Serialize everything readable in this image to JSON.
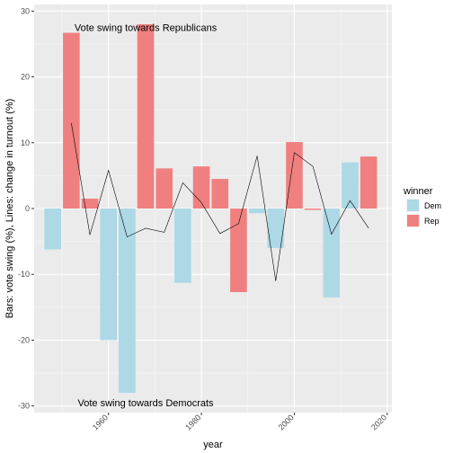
{
  "chart_data": {
    "type": "bar",
    "title": "",
    "xlabel": "year",
    "ylabel": "Bars: vote swing (%), Lines: change in turnout (%)",
    "xlim": [
      1944,
      2021
    ],
    "ylim": [
      -31,
      31
    ],
    "x_ticks": [
      1960,
      1980,
      2000,
      2020
    ],
    "x_tick_labels": [
      "1960",
      "1980",
      "2000",
      "2020"
    ],
    "y_ticks": [
      -30,
      -20,
      -10,
      0,
      10,
      20,
      30
    ],
    "y_tick_labels": [
      "-30",
      "-20",
      "-10",
      "0",
      "10",
      "20",
      "30"
    ],
    "grid": true,
    "legend_placement": "right",
    "legend": {
      "title": "winner",
      "entries": [
        {
          "label": "Dem",
          "color": "#ADD8E6"
        },
        {
          "label": "Rep",
          "color": "#F08080"
        }
      ]
    },
    "annotations": [
      {
        "text": "Vote swing towards Republicans",
        "x": 1968,
        "y": 27.5
      },
      {
        "text": "Vote swing towards Democrats",
        "x": 1968,
        "y": -29.5
      }
    ],
    "bars": [
      {
        "year": 1948,
        "value": -6.2,
        "winner": "Dem"
      },
      {
        "year": 1952,
        "value": 26.7,
        "winner": "Rep"
      },
      {
        "year": 1956,
        "value": 1.5,
        "winner": "Rep"
      },
      {
        "year": 1960,
        "value": -20.0,
        "winner": "Dem"
      },
      {
        "year": 1964,
        "value": -28.0,
        "winner": "Dem"
      },
      {
        "year": 1968,
        "value": 28.0,
        "winner": "Rep"
      },
      {
        "year": 1972,
        "value": 6.1,
        "winner": "Rep"
      },
      {
        "year": 1976,
        "value": -11.3,
        "winner": "Dem"
      },
      {
        "year": 1980,
        "value": 6.4,
        "winner": "Rep"
      },
      {
        "year": 1984,
        "value": 4.5,
        "winner": "Rep"
      },
      {
        "year": 1988,
        "value": -12.7,
        "winner": "Rep"
      },
      {
        "year": 1992,
        "value": -0.7,
        "winner": "Dem"
      },
      {
        "year": 1996,
        "value": -6.0,
        "winner": "Dem"
      },
      {
        "year": 2000,
        "value": 10.1,
        "winner": "Rep"
      },
      {
        "year": 2004,
        "value": -0.2,
        "winner": "Rep"
      },
      {
        "year": 2008,
        "value": -13.5,
        "winner": "Dem"
      },
      {
        "year": 2012,
        "value": 7.0,
        "winner": "Dem"
      },
      {
        "year": 2016,
        "value": 7.9,
        "winner": "Rep"
      }
    ],
    "turnout_change": {
      "x": [
        1952,
        1956,
        1960,
        1964,
        1968,
        1972,
        1976,
        1980,
        1984,
        1988,
        1992,
        1996,
        2000,
        2004,
        2008,
        2012,
        2016
      ],
      "y": [
        13.0,
        -4.0,
        5.8,
        -4.3,
        -3.0,
        -3.6,
        3.9,
        0.9,
        -3.8,
        -2.3,
        8.0,
        -11.0,
        8.5,
        6.4,
        -3.9,
        1.2,
        -3.0
      ]
    }
  }
}
